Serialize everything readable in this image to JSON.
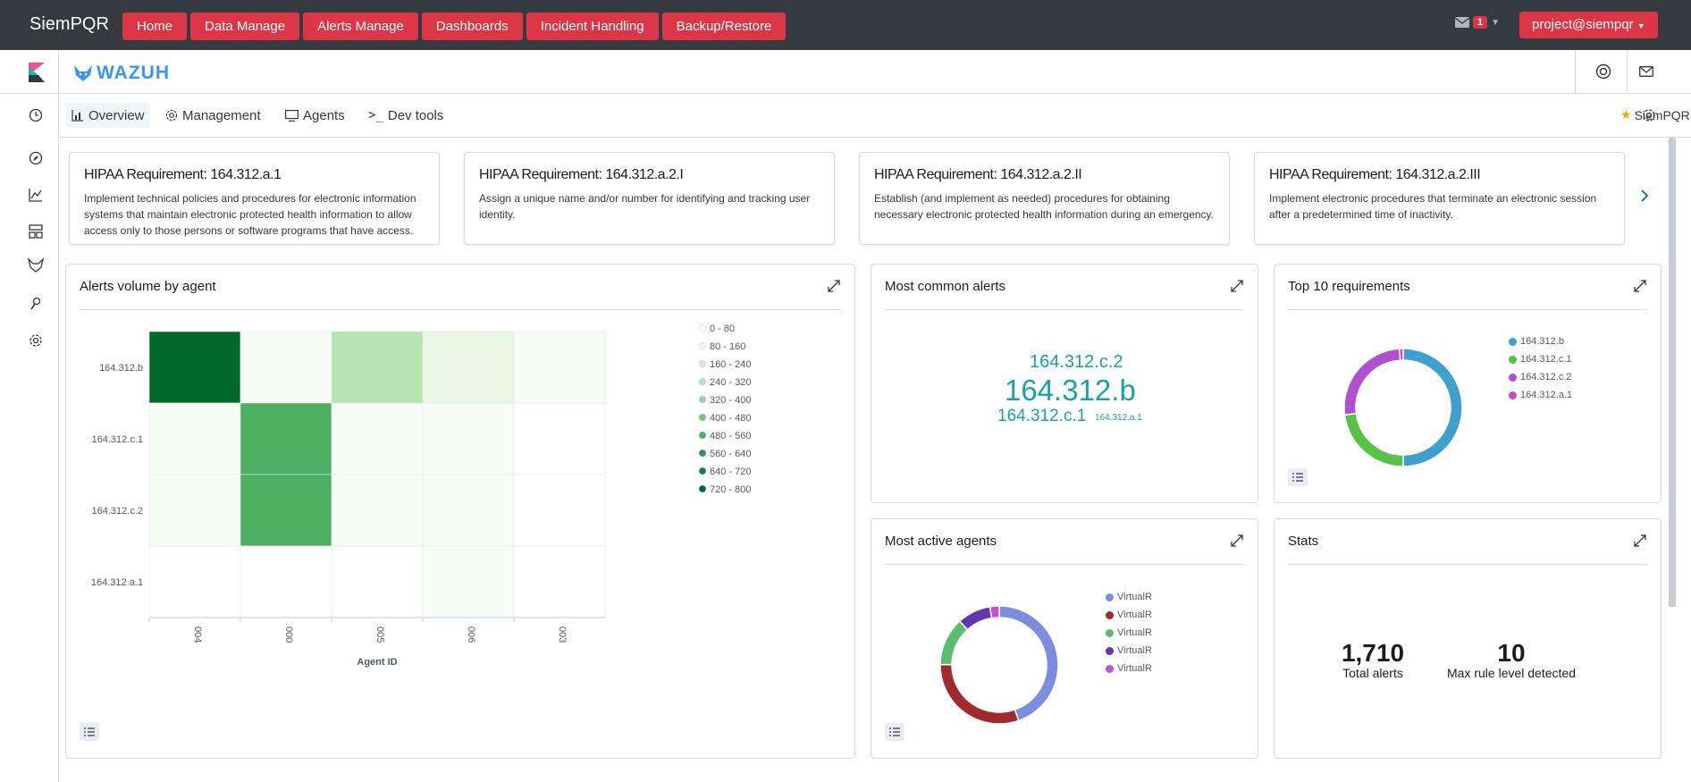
{
  "topbar": {
    "brand": "SiemPQR",
    "nav": [
      "Home",
      "Data Manage",
      "Alerts Manage",
      "Dashboards",
      "Incident Handling",
      "Backup/Restore"
    ],
    "mail_count": "1",
    "user": "project@siempqr"
  },
  "header": {
    "app_logo": "WAZUH"
  },
  "subnav": {
    "tabs": [
      "Overview",
      "Management",
      "Agents",
      "Dev tools"
    ],
    "favorite": "SiemPQR"
  },
  "requirements": [
    {
      "title": "HIPAA Requirement: 164.312.a.1",
      "text": "Implement technical policies and procedures for electronic information systems that maintain electronic protected health information to allow access only to those persons or software programs that have access."
    },
    {
      "title": "HIPAA Requirement: 164.312.a.2.I",
      "text": "Assign a unique name and/or number for identifying and tracking user identity."
    },
    {
      "title": "HIPAA Requirement: 164.312.a.2.II",
      "text": "Establish (and implement as needed) procedures for obtaining necessary electronic protected health information during an emergency."
    },
    {
      "title": "HIPAA Requirement: 164.312.a.2.III",
      "text": "Implement electronic procedures that terminate an electronic session after a predetermined time of inactivity."
    }
  ],
  "panels": {
    "heatmap_title": "Alerts volume by agent",
    "common_title": "Most common alerts",
    "top10_title": "Top 10 requirements",
    "agents_title": "Most active agents",
    "stats_title": "Stats"
  },
  "common_alerts": {
    "words": [
      "164.312.c.2",
      "164.312.b",
      "164.312.c.1",
      "164.312.a.1"
    ]
  },
  "stats": {
    "total_alerts_value": "1,710",
    "total_alerts_label": "Total alerts",
    "max_rule_value": "10",
    "max_rule_label": "Max rule level detected"
  },
  "colors": {
    "nav_button": "#dc3545",
    "topbar_bg": "#343a40",
    "tag_cloud": "#17a2a8"
  },
  "chart_data": [
    {
      "type": "heatmap",
      "title": "Alerts volume by agent",
      "xlabel": "Agent ID",
      "x": [
        "004",
        "000",
        "005",
        "006",
        "003"
      ],
      "y": [
        "164.312.b",
        "164.312.c.1",
        "164.312.c.2",
        "164.312.a.1"
      ],
      "values": [
        [
          750,
          20,
          240,
          130,
          60
        ],
        [
          40,
          520,
          50,
          40,
          null
        ],
        [
          40,
          520,
          50,
          40,
          null
        ],
        [
          null,
          null,
          null,
          60,
          null
        ]
      ],
      "legend_ranges": [
        "0 - 80",
        "80 - 160",
        "160 - 240",
        "240 - 320",
        "320 - 400",
        "400 - 480",
        "480 - 560",
        "560 - 640",
        "640 - 720",
        "720 - 800"
      ],
      "legend_colors": [
        "#f7fcf5",
        "#e8f6e3",
        "#d3eecd",
        "#b8e3b2",
        "#98d594",
        "#73c378",
        "#4daf62",
        "#2f974e",
        "#16803c",
        "#00692a"
      ],
      "legend_position": "right"
    },
    {
      "type": "pie",
      "title": "Top 10 requirements",
      "labels": [
        "164.312.b",
        "164.312.c.1",
        "164.312.c.2",
        "164.312.a.1"
      ],
      "values": [
        50,
        23,
        26,
        1
      ],
      "colors": [
        "#3fa0cf",
        "#57c244",
        "#b04fd0",
        "#d443c4"
      ],
      "donut": true,
      "legend_position": "right"
    },
    {
      "type": "pie",
      "title": "Most active agents",
      "labels": [
        "VirtualR",
        "VirtualR",
        "VirtualR",
        "VirtualR",
        "VirtualR"
      ],
      "values": [
        44,
        30,
        13,
        9,
        2.5
      ],
      "colors": [
        "#7b8de0",
        "#a2292e",
        "#5bbd6d",
        "#6336ad",
        "#c74fd1"
      ],
      "donut": true,
      "legend_position": "right"
    }
  ]
}
